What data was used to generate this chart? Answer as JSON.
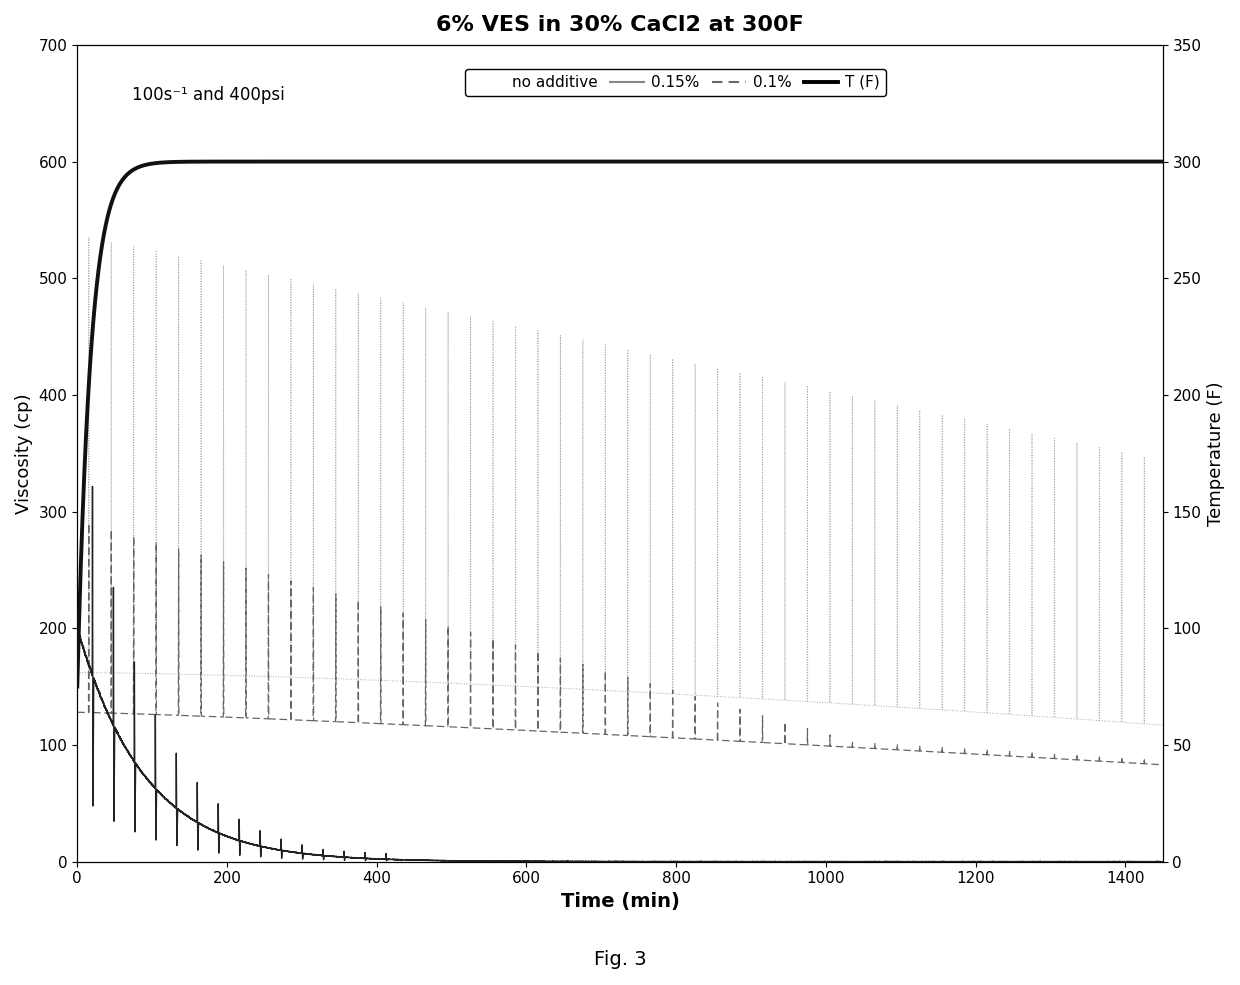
{
  "title": "6% VES in 30% CaCl2 at 300F",
  "annotation": "100s⁻¹ and 400psi",
  "xlabel": "Time (min)",
  "ylabel_left": "Viscosity (cp)",
  "ylabel_right": "Temperature (F)",
  "xlim": [
    0,
    1450
  ],
  "ylim_left": [
    0,
    700
  ],
  "ylim_right": [
    0,
    350
  ],
  "xticks": [
    0,
    200,
    400,
    600,
    800,
    1000,
    1200,
    1400
  ],
  "yticks_left": [
    0,
    100,
    200,
    300,
    400,
    500,
    600,
    700
  ],
  "yticks_right": [
    0,
    50,
    100,
    150,
    200,
    250,
    300,
    350
  ],
  "colors": {
    "no_additive": "#222222",
    "line_015": "#aaaaaa",
    "line_01": "#666666",
    "temperature": "#111111",
    "background": "#ffffff"
  },
  "fig_label": "Fig. 3",
  "spike_period": 30,
  "n_spikes": 40
}
